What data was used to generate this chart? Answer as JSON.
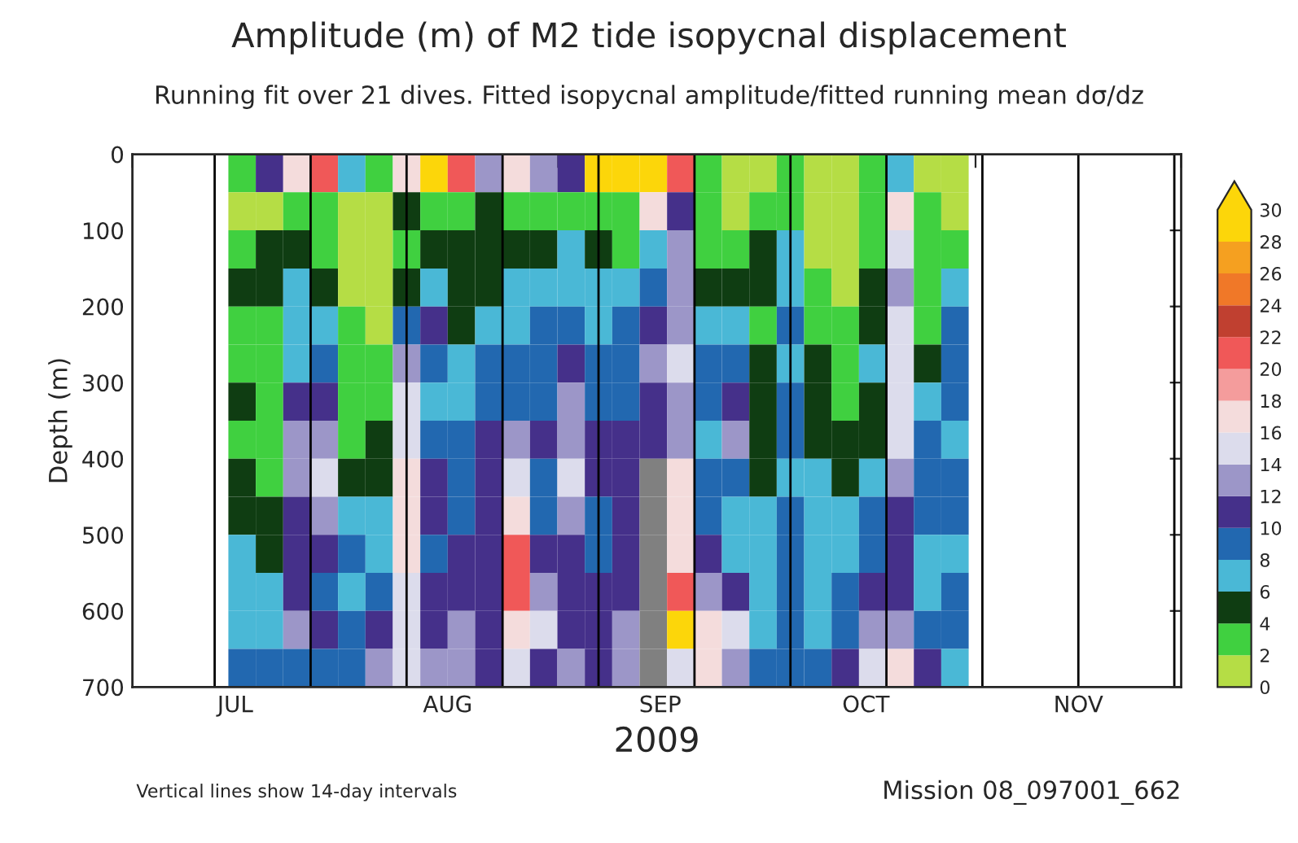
{
  "chart_data": {
    "type": "heatmap",
    "title": "Amplitude (m) of M2 tide isopycnal displacement",
    "subtitle": "Running fit over 21 dives. Fitted isopycnal amplitude/fitted running mean dσ/dz",
    "xlabel": "2009",
    "ylabel": "Depth (m)",
    "x": [
      "2009-07-17",
      "2009-07-21",
      "2009-07-25",
      "2009-07-29",
      "2009-08-02",
      "2009-08-06",
      "2009-08-10",
      "2009-08-14",
      "2009-08-18",
      "2009-08-22",
      "2009-08-26",
      "2009-08-30",
      "2009-09-03",
      "2009-09-07",
      "2009-09-11",
      "2009-09-15",
      "2009-09-19",
      "2009-09-23",
      "2009-09-27",
      "2009-10-01",
      "2009-10-05",
      "2009-10-09",
      "2009-10-13",
      "2009-10-17",
      "2009-10-21",
      "2009-10-25",
      "2009-10-29"
    ],
    "y": [
      25,
      75,
      125,
      175,
      225,
      275,
      325,
      375,
      425,
      475,
      525,
      575,
      625,
      675
    ],
    "cells": [
      [
        3,
        11,
        17,
        21,
        7,
        3,
        17,
        29,
        21,
        13,
        17,
        13,
        11,
        29,
        29,
        29,
        21,
        3,
        1,
        1,
        3,
        1,
        1,
        3,
        7,
        1,
        1
      ],
      [
        1,
        1,
        3,
        3,
        1,
        1,
        5,
        3,
        3,
        5,
        3,
        3,
        3,
        3,
        3,
        17,
        11,
        3,
        1,
        3,
        3,
        1,
        1,
        3,
        17,
        3,
        1
      ],
      [
        3,
        5,
        5,
        3,
        1,
        1,
        3,
        5,
        5,
        5,
        5,
        5,
        7,
        5,
        3,
        7,
        13,
        3,
        3,
        5,
        7,
        1,
        1,
        3,
        15,
        3,
        3
      ],
      [
        5,
        5,
        7,
        5,
        1,
        1,
        5,
        7,
        5,
        5,
        7,
        7,
        7,
        7,
        7,
        9,
        13,
        5,
        5,
        5,
        7,
        3,
        1,
        5,
        13,
        3,
        7
      ],
      [
        3,
        3,
        7,
        7,
        3,
        1,
        9,
        11,
        5,
        7,
        7,
        9,
        9,
        7,
        9,
        11,
        13,
        7,
        7,
        3,
        9,
        3,
        3,
        5,
        15,
        3,
        9
      ],
      [
        3,
        3,
        7,
        9,
        3,
        3,
        13,
        9,
        7,
        9,
        9,
        9,
        11,
        9,
        9,
        13,
        15,
        9,
        9,
        5,
        7,
        5,
        3,
        7,
        15,
        5,
        9
      ],
      [
        5,
        3,
        11,
        11,
        3,
        3,
        15,
        7,
        7,
        9,
        9,
        9,
        13,
        9,
        9,
        11,
        13,
        9,
        11,
        5,
        9,
        5,
        3,
        5,
        15,
        7,
        9
      ],
      [
        3,
        3,
        13,
        13,
        3,
        5,
        15,
        9,
        9,
        11,
        13,
        11,
        13,
        11,
        11,
        11,
        13,
        7,
        13,
        5,
        9,
        5,
        5,
        5,
        15,
        9,
        7
      ],
      [
        5,
        3,
        13,
        15,
        5,
        5,
        17,
        11,
        9,
        11,
        15,
        9,
        15,
        11,
        11,
        null,
        17,
        9,
        9,
        5,
        7,
        7,
        5,
        7,
        13,
        9,
        9
      ],
      [
        5,
        5,
        11,
        13,
        7,
        7,
        17,
        11,
        9,
        11,
        17,
        9,
        13,
        9,
        11,
        null,
        17,
        9,
        7,
        7,
        9,
        7,
        7,
        9,
        11,
        9,
        9
      ],
      [
        7,
        5,
        11,
        11,
        9,
        7,
        17,
        9,
        11,
        11,
        21,
        11,
        11,
        9,
        11,
        null,
        17,
        11,
        7,
        7,
        9,
        7,
        7,
        9,
        11,
        7,
        7
      ],
      [
        7,
        7,
        11,
        9,
        7,
        9,
        15,
        11,
        11,
        11,
        21,
        13,
        11,
        11,
        11,
        null,
        21,
        13,
        11,
        7,
        9,
        7,
        9,
        11,
        11,
        7,
        9
      ],
      [
        7,
        7,
        13,
        11,
        9,
        11,
        15,
        11,
        13,
        11,
        17,
        15,
        11,
        11,
        13,
        null,
        29,
        17,
        15,
        7,
        9,
        7,
        9,
        13,
        13,
        9,
        9
      ],
      [
        9,
        9,
        9,
        9,
        9,
        13,
        15,
        13,
        13,
        11,
        15,
        11,
        13,
        11,
        13,
        null,
        15,
        17,
        13,
        9,
        9,
        9,
        11,
        15,
        17,
        11,
        7
      ]
    ],
    "colors": [
      "#b5dd45",
      "#40d040",
      "#0f3d12",
      "#4ab8d6",
      "#2268b0",
      "#45308a",
      "#9c96c8",
      "#dcdcec",
      "#f4dcdc",
      "#f49c9c",
      "#f05858",
      "#c04030",
      "#f07828",
      "#f5a020",
      "#fcd60a"
    ],
    "clim": [
      0,
      30
    ],
    "cticks": [
      0,
      2,
      4,
      6,
      8,
      10,
      12,
      14,
      16,
      18,
      20,
      22,
      24,
      26,
      28,
      30
    ],
    "xlim": [
      "2009-07-01",
      "2009-12-01"
    ],
    "xticks": [
      {
        "value": "2009-07-01",
        "label": null
      },
      {
        "value": "2009-07-16",
        "label": "JUL"
      },
      {
        "value": "2009-08-01",
        "label": null
      },
      {
        "value": "2009-08-16",
        "label": "AUG"
      },
      {
        "value": "2009-09-01",
        "label": null
      },
      {
        "value": "2009-09-16",
        "label": "SEP"
      },
      {
        "value": "2009-10-01",
        "label": null
      },
      {
        "value": "2009-10-16",
        "label": "OCT"
      },
      {
        "value": "2009-11-01",
        "label": null
      },
      {
        "value": "2009-11-16",
        "label": "NOV"
      },
      {
        "value": "2009-12-01",
        "label": null
      }
    ],
    "ylim": [
      700,
      0
    ],
    "yticks": [
      0,
      100,
      200,
      300,
      400,
      500,
      600,
      700
    ],
    "ref_lines": [
      {
        "axis": "x",
        "value": "2009-07-13",
        "color": "#000000"
      },
      {
        "axis": "x",
        "value": "2009-07-27",
        "color": "#000000"
      },
      {
        "axis": "x",
        "value": "2009-08-10",
        "color": "#000000"
      },
      {
        "axis": "x",
        "value": "2009-08-24",
        "color": "#000000"
      },
      {
        "axis": "x",
        "value": "2009-09-07",
        "color": "#000000"
      },
      {
        "axis": "x",
        "value": "2009-09-21",
        "color": "#000000"
      },
      {
        "axis": "x",
        "value": "2009-10-05",
        "color": "#000000"
      },
      {
        "axis": "x",
        "value": "2009-10-19",
        "color": "#000000"
      },
      {
        "axis": "x",
        "value": "2009-11-02",
        "color": "#000000"
      },
      {
        "axis": "x",
        "value": "2009-11-16",
        "color": "#000000"
      },
      {
        "axis": "x",
        "value": "2009-11-30",
        "color": "#000000"
      }
    ],
    "annotations": [
      "Vertical lines show 14-day intervals",
      "Mission 08_097001_662"
    ]
  }
}
